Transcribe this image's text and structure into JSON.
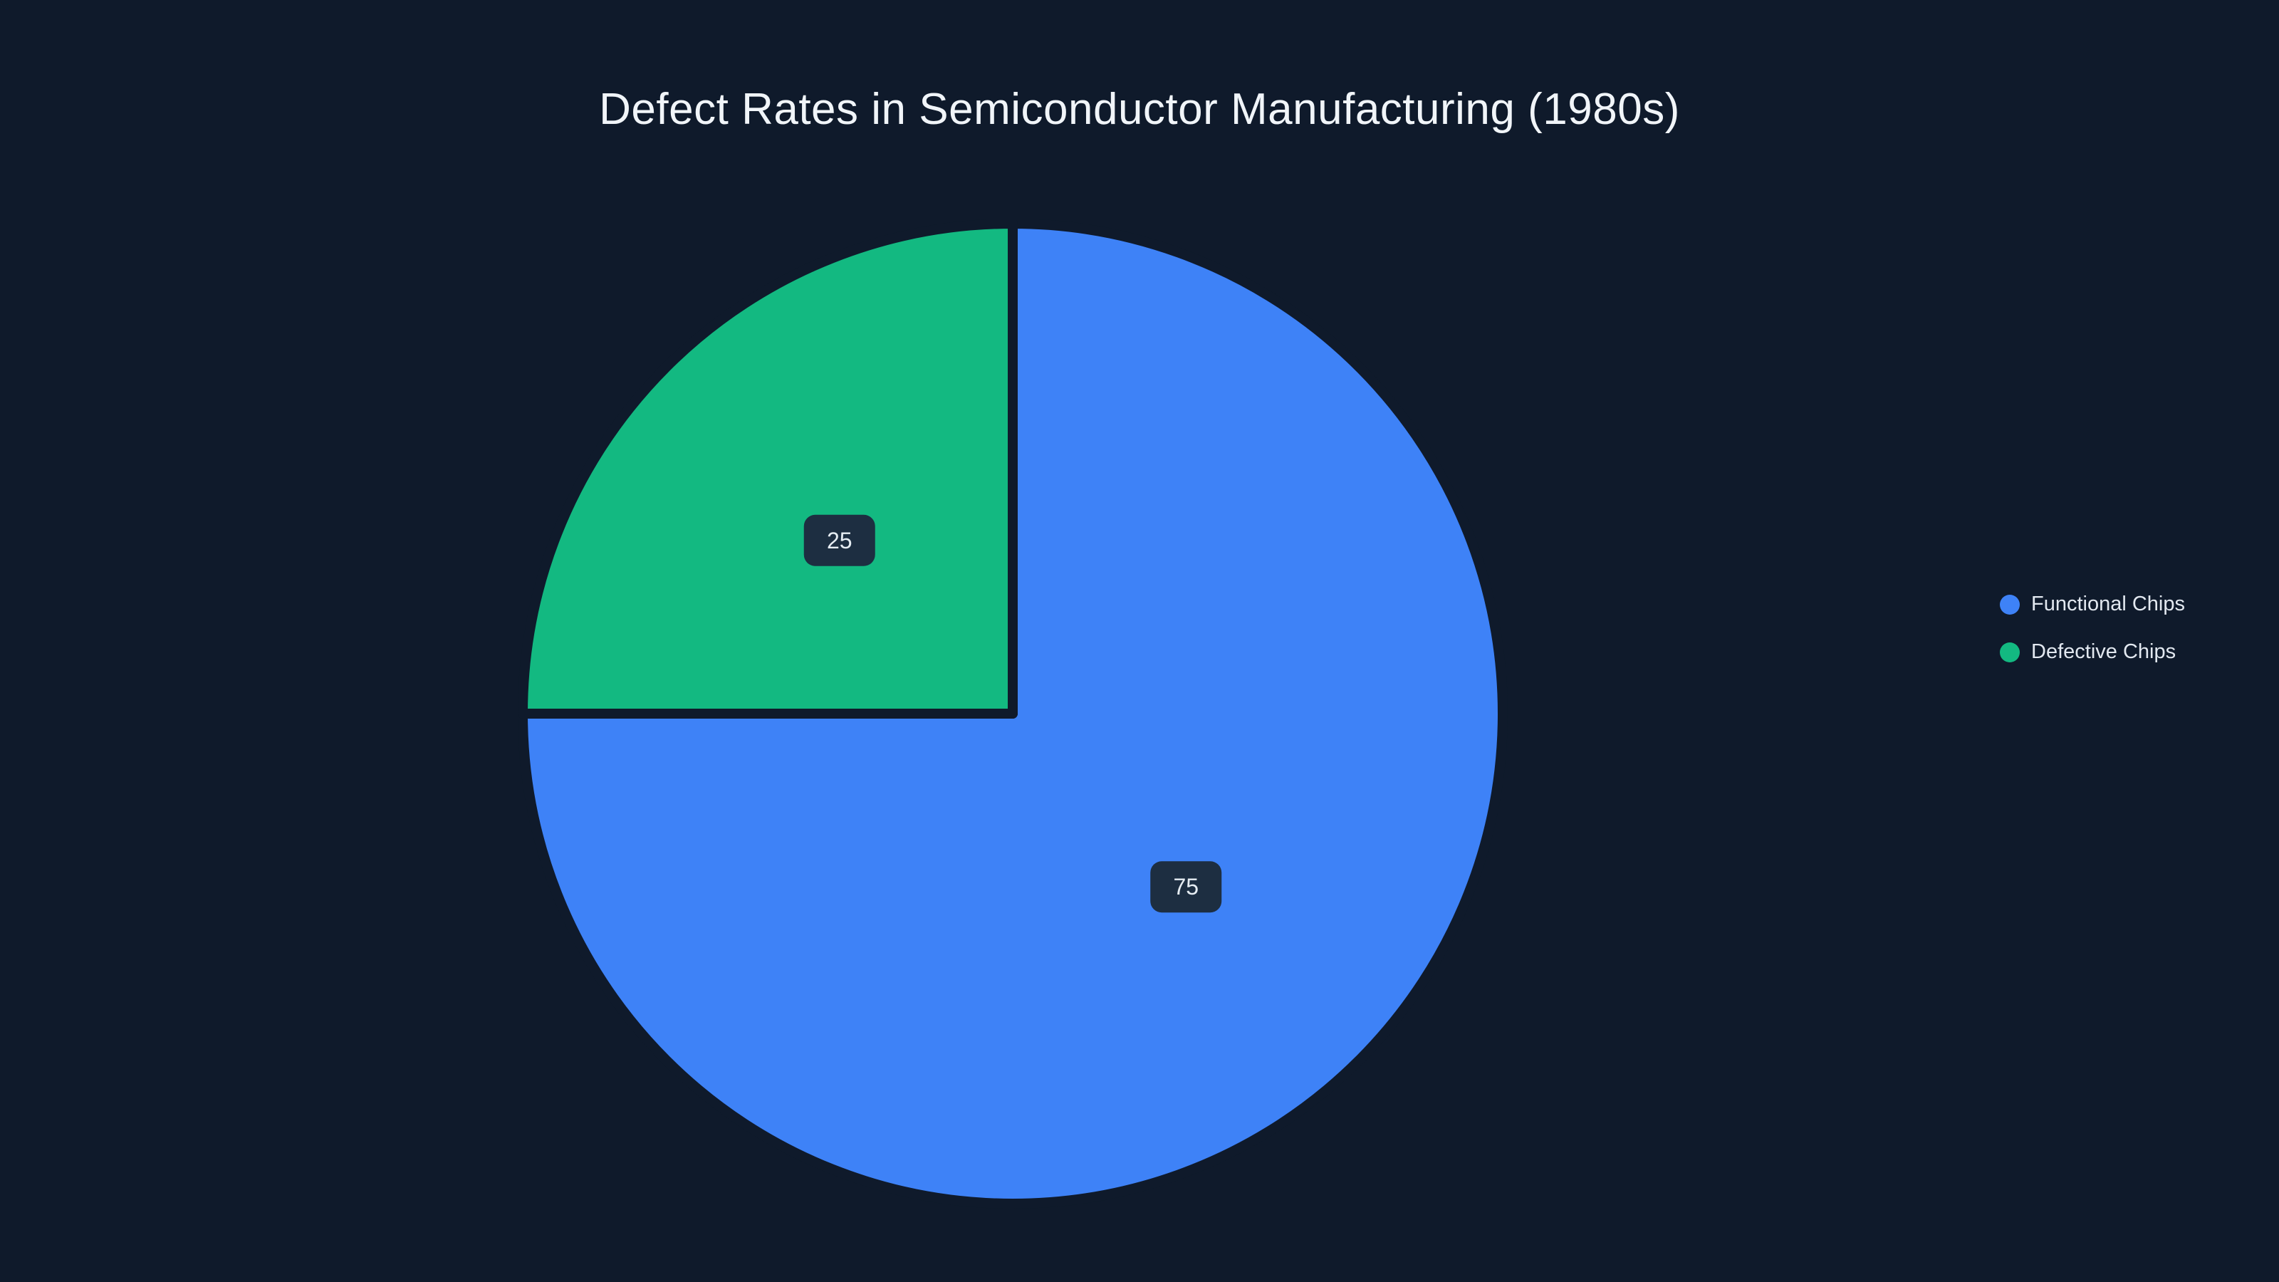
{
  "title": "Defect Rates in Semiconductor Manufacturing (1980s)",
  "colors": {
    "background": "#0f1a2b",
    "badge_background": "#1d2e41",
    "title_text": "#f1f5f9",
    "legend_text": "#e2e8f0",
    "label_text": "#e6edf3"
  },
  "chart_data": {
    "type": "pie",
    "title": "Defect Rates in Semiconductor Manufacturing (1980s)",
    "series": [
      {
        "name": "Functional Chips",
        "value": 75,
        "color": "#3e82f7"
      },
      {
        "name": "Defective Chips",
        "value": 25,
        "color": "#13b981"
      }
    ],
    "labels_shown": [
      75,
      25
    ],
    "label_format": "value",
    "label_radius_fraction": 0.5,
    "start_angle_deg": -90,
    "direction": "clockwise",
    "legend_position": "right",
    "grid": false
  },
  "legend": {
    "items": [
      {
        "label": "Functional Chips",
        "color": "#3e82f7"
      },
      {
        "label": "Defective Chips",
        "color": "#13b981"
      }
    ]
  }
}
